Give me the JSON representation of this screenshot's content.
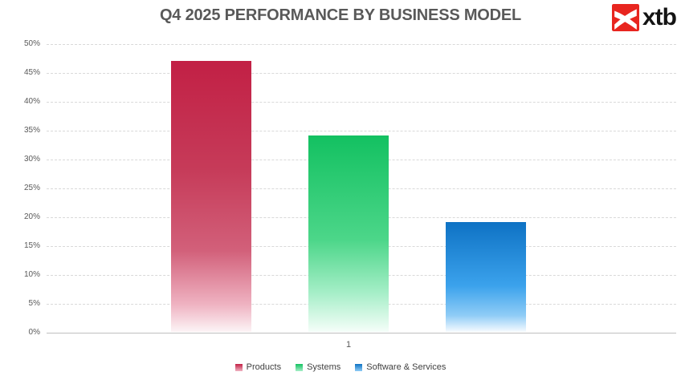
{
  "header": {
    "title": "Q4 2025 PERFORMANCE BY BUSINESS MODEL",
    "brand": {
      "logo_text": "xtb",
      "logo_red": "#E8251F",
      "logo_text_color": "#141414"
    }
  },
  "chart_data": {
    "type": "bar",
    "title": "Q4 2025 PERFORMANCE BY BUSINESS MODEL",
    "categories": [
      "1"
    ],
    "series": [
      {
        "name": "Products",
        "values": [
          47
        ],
        "color": "#C22045",
        "gradient": [
          [
            "0%",
            "#C22045"
          ],
          [
            "40%",
            "#C63B59"
          ],
          [
            "70%",
            "#D2607A"
          ],
          [
            "90%",
            "#EFB3C2"
          ],
          [
            "100%",
            "#FCF4F6"
          ]
        ]
      },
      {
        "name": "Systems",
        "values": [
          34
        ],
        "color": "#13C161",
        "gradient": [
          [
            "0%",
            "#13C161"
          ],
          [
            "53%",
            "#4CD689"
          ],
          [
            "80%",
            "#A5EEC7"
          ],
          [
            "100%",
            "#F5FEF9"
          ]
        ]
      },
      {
        "name": "Software & Services",
        "values": [
          19
        ],
        "color": "#0E72C4",
        "gradient": [
          [
            "0%",
            "#0E72C4"
          ],
          [
            "58%",
            "#3BA2EC"
          ],
          [
            "85%",
            "#8FCCF6"
          ],
          [
            "100%",
            "#F7FBFF"
          ]
        ]
      }
    ],
    "xlabel": "",
    "ylabel": "",
    "ylim": [
      0,
      50
    ],
    "ytick_step": 5,
    "yticks": [
      "0%",
      "5%",
      "10%",
      "15%",
      "20%",
      "25%",
      "30%",
      "35%",
      "40%",
      "45%",
      "50%"
    ],
    "grid": "horizontal-dashed",
    "legend_position": "bottom",
    "legend": [
      "Products",
      "Systems",
      "Software & Services"
    ]
  },
  "colors": {
    "background": "#FFFFFF",
    "title_text": "#595959",
    "axis_text": "#595959",
    "gridline": "#D9D9D9",
    "axis_line": "#BFBFBF",
    "legend_text": "#404040"
  }
}
